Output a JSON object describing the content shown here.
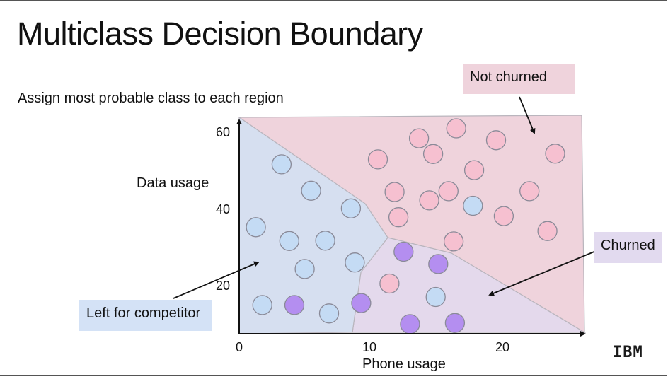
{
  "slide": {
    "title": "Multiclass Decision Boundary",
    "subtitle": "Assign most probable class to each region",
    "logo": "IBM"
  },
  "labels": {
    "not_churned": "Not churned",
    "churned": "Churned",
    "left_for_competitor": "Left for competitor"
  },
  "colors": {
    "region_not_churned": "#efd3dc",
    "region_churned": "#e4d9ec",
    "region_left": "#d6dff0",
    "point_pink": "#f6c0d0",
    "point_blue": "#c4dbf4",
    "point_purple": "#b48ef0",
    "label_not_churned_bg": "#efd3dc",
    "label_churned_bg": "#e2daef",
    "label_left_bg": "#d4e2f6"
  },
  "chart_data": {
    "type": "scatter",
    "xlabel": "Phone usage",
    "ylabel": "Data usage",
    "xlim": [
      0,
      26
    ],
    "ylim": [
      0,
      62
    ],
    "xticks": [
      "0",
      "10",
      "20"
    ],
    "yticks": [
      "20",
      "40",
      "60"
    ],
    "regions": [
      {
        "name": "Not churned",
        "color": "#efd3dc"
      },
      {
        "name": "Churned",
        "color": "#e4d9ec"
      },
      {
        "name": "Left for competitor",
        "color": "#d6dff0"
      }
    ],
    "series": [
      {
        "name": "Not churned",
        "color": "#f6c0d0",
        "points": [
          [
            14,
            51
          ],
          [
            16.9,
            53.6
          ],
          [
            20,
            50.5
          ],
          [
            24.6,
            47
          ],
          [
            10.8,
            45.5
          ],
          [
            15.1,
            46.9
          ],
          [
            18.3,
            42.7
          ],
          [
            12.1,
            37
          ],
          [
            14.8,
            34.8
          ],
          [
            16.3,
            37.2
          ],
          [
            22.6,
            37.2
          ],
          [
            12.4,
            30.4
          ],
          [
            20.6,
            30.7
          ],
          [
            24,
            26.8
          ],
          [
            16.7,
            24.1
          ],
          [
            11.7,
            13.1
          ]
        ]
      },
      {
        "name": "Left for competitor",
        "color": "#c4dbf4",
        "points": [
          [
            3.3,
            44.2
          ],
          [
            5.6,
            37.3
          ],
          [
            8.7,
            32.7
          ],
          [
            1.3,
            27.8
          ],
          [
            3.9,
            24.2
          ],
          [
            6.7,
            24.3
          ],
          [
            9,
            18.6
          ],
          [
            5.1,
            16.9
          ],
          [
            1.8,
            7.5
          ],
          [
            7,
            5.3
          ],
          [
            18.2,
            33.4
          ],
          [
            15.3,
            9.6
          ]
        ]
      },
      {
        "name": "Churned",
        "color": "#b48ef0",
        "points": [
          [
            12.8,
            21.4
          ],
          [
            15.5,
            18.2
          ],
          [
            4.3,
            7.5
          ],
          [
            9.5,
            8
          ],
          [
            13.3,
            2.5
          ],
          [
            16.8,
            2.8
          ]
        ]
      }
    ],
    "annotations": [
      "Not churned",
      "Churned",
      "Left for competitor"
    ]
  }
}
